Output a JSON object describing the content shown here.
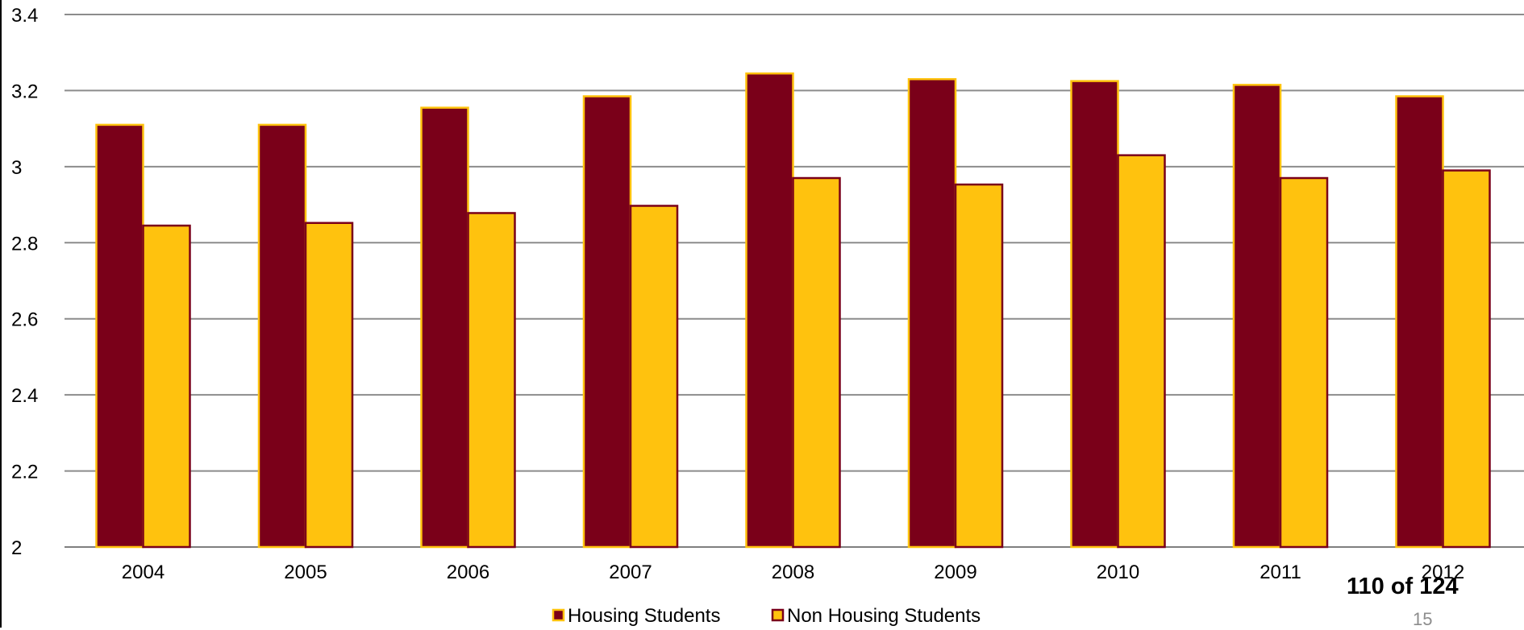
{
  "chart_data": {
    "type": "bar",
    "categories": [
      "2004",
      "2005",
      "2006",
      "2007",
      "2008",
      "2009",
      "2010",
      "2011",
      "2012"
    ],
    "series": [
      {
        "name": "Housing Students",
        "values": [
          3.11,
          3.11,
          3.155,
          3.185,
          3.245,
          3.23,
          3.225,
          3.215,
          3.185
        ],
        "color": "#7a0019",
        "edge": "#ffc20e"
      },
      {
        "name": "Non Housing Students",
        "values": [
          2.845,
          2.852,
          2.878,
          2.897,
          2.97,
          2.953,
          3.03,
          2.97,
          2.99
        ],
        "color": "#ffc20e",
        "edge": "#7a0019"
      }
    ],
    "ylim": [
      2,
      3.4
    ],
    "yticks": [
      "2",
      "2.2",
      "2.4",
      "2.6",
      "2.8",
      "3",
      "3.2",
      "3.4"
    ],
    "grid": true,
    "legend_position": "bottom",
    "title": "",
    "xlabel": "",
    "ylabel": ""
  },
  "footer": {
    "page_counter": "110 of 124",
    "page_number": "15"
  },
  "colors": {
    "gridline": "#8c8c8c",
    "axis": "#7f7f7f"
  }
}
